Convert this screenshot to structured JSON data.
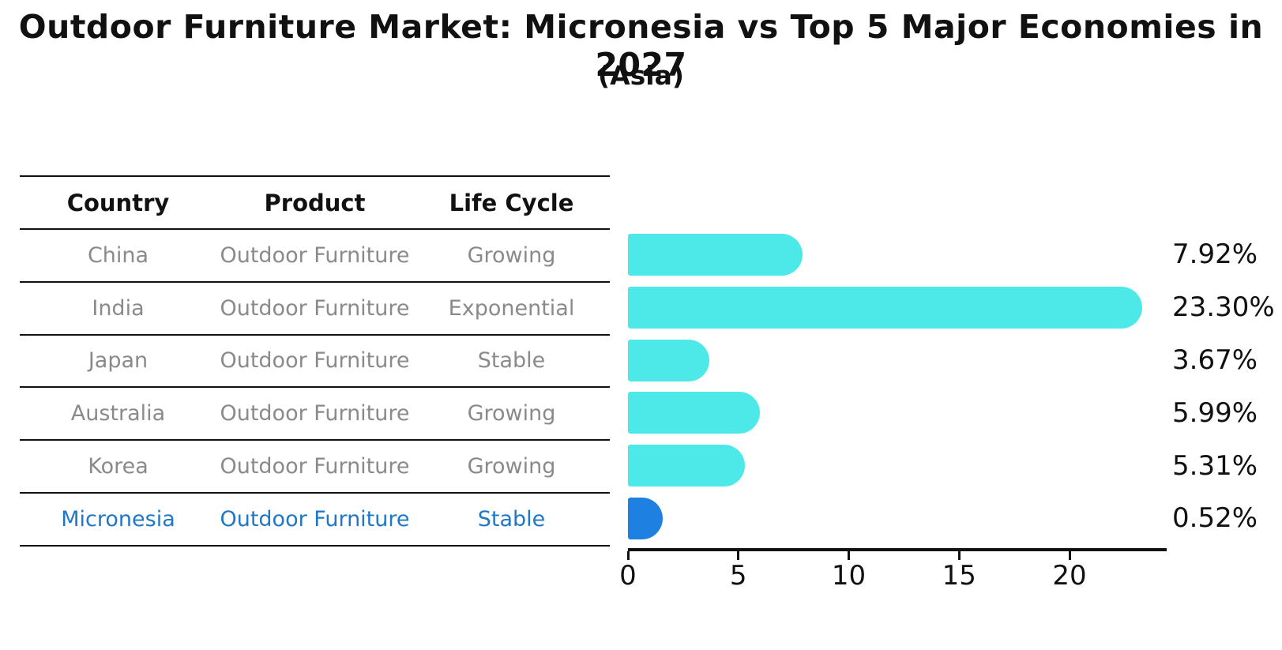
{
  "title": "Outdoor Furniture Market: Micronesia vs Top 5 Major Economies in 2027",
  "subtitle": "(Asia)",
  "table": {
    "headers": [
      "Country",
      "Product",
      "Life Cycle"
    ],
    "rows": [
      {
        "country": "China",
        "product": "Outdoor Furniture",
        "life_cycle": "Growing",
        "highlight": false
      },
      {
        "country": "India",
        "product": "Outdoor Furniture",
        "life_cycle": "Exponential",
        "highlight": false
      },
      {
        "country": "Japan",
        "product": "Outdoor Furniture",
        "life_cycle": "Stable",
        "highlight": false
      },
      {
        "country": "Australia",
        "product": "Outdoor Furniture",
        "life_cycle": "Growing",
        "highlight": false
      },
      {
        "country": "Korea",
        "product": "Outdoor Furniture",
        "life_cycle": "Growing",
        "highlight": false
      },
      {
        "country": "Micronesia",
        "product": "Outdoor Furniture",
        "life_cycle": "Stable",
        "highlight": true
      }
    ]
  },
  "chart_data": {
    "type": "bar",
    "orientation": "horizontal",
    "categories": [
      "China",
      "India",
      "Japan",
      "Australia",
      "Korea",
      "Micronesia"
    ],
    "values": [
      7.92,
      23.3,
      3.67,
      5.99,
      5.31,
      0.52
    ],
    "value_labels": [
      "7.92%",
      "23.30%",
      "3.67%",
      "5.99%",
      "5.31%",
      "0.52%"
    ],
    "xlabel": "",
    "ylabel": "",
    "xticks": [
      0,
      5,
      10,
      15,
      20
    ],
    "xlim": [
      0,
      24.4
    ],
    "grid": false,
    "legend": false,
    "bar_color": "#4DE8E8",
    "highlight_color": "#1E80E0",
    "highlight_index": 5
  },
  "colors": {
    "background": "#FFFFFF",
    "bar_cyan": "#4DE8E8",
    "bar_blue": "#1E80E0",
    "highlight_text": "#1F77C8",
    "table_text": "#8A8A8A",
    "heading_text": "#111111"
  }
}
